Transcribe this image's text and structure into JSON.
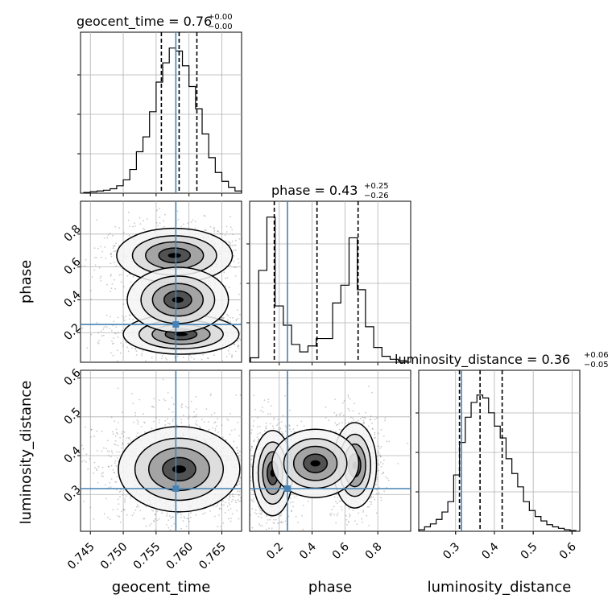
{
  "colors": {
    "truth": "#4682b4",
    "hist_line": "#000000",
    "grid": "#b0b0b0",
    "points": "#666666",
    "density_dark": "#000000"
  },
  "chart_data": {
    "type": "corner",
    "parameters": [
      "geocent_time",
      "phase",
      "luminosity_distance"
    ],
    "truths": {
      "geocent_time": 0.758,
      "phase": 0.25,
      "luminosity_distance": 0.315
    },
    "axis_ranges": {
      "geocent_time": [
        0.7435,
        0.768
      ],
      "phase": [
        0.02,
        1.0
      ],
      "luminosity_distance": [
        0.205,
        0.62
      ]
    },
    "ticks": {
      "geocent_time": [
        0.745,
        0.75,
        0.755,
        0.76,
        0.765
      ],
      "geocent_time_labels": [
        "0.745",
        "0.750",
        "0.755",
        "0.760",
        "0.765"
      ],
      "phase": [
        0.2,
        0.4,
        0.6,
        0.8
      ],
      "phase_labels": [
        "0.2",
        "0.4",
        "0.6",
        "0.8"
      ],
      "luminosity_distance": [
        0.3,
        0.4,
        0.5,
        0.6
      ],
      "luminosity_distance_labels": [
        "0.3",
        "0.4",
        "0.5",
        "0.6"
      ]
    },
    "grid": true,
    "titles": {
      "geocent_time": {
        "label": "geocent_time = 0.76",
        "sup": "+0.00",
        "sub": "−0.00"
      },
      "phase": {
        "label": "phase = 0.43",
        "sup": "+0.25",
        "sub": "−0.26"
      },
      "luminosity_distance": {
        "label": "luminosity_distance = 0.36",
        "sup": "+0.06",
        "sub": "−0.05"
      }
    },
    "axis_labels": {
      "geocent_time": "geocent_time",
      "phase": "phase",
      "luminosity_distance": "luminosity_distance"
    },
    "quantiles": {
      "geocent_time": [
        0.7558,
        0.7585,
        0.7612
      ],
      "phase": [
        0.17,
        0.43,
        0.68
      ],
      "luminosity_distance": [
        0.31,
        0.363,
        0.42
      ]
    },
    "histograms": {
      "geocent_time": {
        "x": [
          0.7445,
          0.7455,
          0.7465,
          0.7475,
          0.7485,
          0.7495,
          0.7505,
          0.7515,
          0.7525,
          0.7535,
          0.7545,
          0.7555,
          0.7565,
          0.7575,
          0.7585,
          0.7595,
          0.7605,
          0.7615,
          0.7625,
          0.7635,
          0.7645,
          0.7655,
          0.7665,
          0.7675
        ],
        "counts": [
          0.005,
          0.01,
          0.015,
          0.02,
          0.03,
          0.05,
          0.09,
          0.16,
          0.28,
          0.38,
          0.55,
          0.75,
          0.88,
          0.98,
          0.96,
          0.86,
          0.72,
          0.57,
          0.4,
          0.24,
          0.14,
          0.08,
          0.04,
          0.015
        ]
      },
      "phase": {
        "x": [
          0.05,
          0.1,
          0.15,
          0.2,
          0.25,
          0.3,
          0.35,
          0.4,
          0.45,
          0.5,
          0.55,
          0.6,
          0.65,
          0.7,
          0.75,
          0.8,
          0.85,
          0.9,
          0.95
        ],
        "counts": [
          0.03,
          0.62,
          0.98,
          0.38,
          0.25,
          0.12,
          0.07,
          0.11,
          0.16,
          0.16,
          0.4,
          0.52,
          0.84,
          0.49,
          0.24,
          0.1,
          0.04,
          0.02,
          0.01
        ]
      },
      "luminosity_distance": {
        "x": [
          0.2125,
          0.2275,
          0.2425,
          0.2575,
          0.2725,
          0.2875,
          0.3025,
          0.3175,
          0.3325,
          0.3475,
          0.3625,
          0.3775,
          0.3925,
          0.4075,
          0.4225,
          0.4375,
          0.4525,
          0.4675,
          0.4825,
          0.4975,
          0.5125,
          0.5275,
          0.5425,
          0.5575,
          0.5725,
          0.5875,
          0.6025
        ],
        "counts": [
          0.01,
          0.03,
          0.05,
          0.08,
          0.13,
          0.2,
          0.38,
          0.6,
          0.77,
          0.87,
          0.92,
          0.9,
          0.8,
          0.71,
          0.63,
          0.49,
          0.39,
          0.3,
          0.2,
          0.14,
          0.1,
          0.07,
          0.045,
          0.03,
          0.02,
          0.01,
          0.005
        ]
      }
    },
    "scatter_components": {
      "geocent_time_vs_phase": [
        {
          "mx": 0.7578,
          "my": 0.67,
          "sx": 0.004,
          "sy": 0.075,
          "w": 0.5
        },
        {
          "mx": 0.7588,
          "my": 0.19,
          "sx": 0.004,
          "sy": 0.055,
          "w": 0.42
        },
        {
          "mx": 0.7583,
          "my": 0.4,
          "sx": 0.0035,
          "sy": 0.09,
          "w": 0.08
        }
      ],
      "geocent_time_vs_luminosity_distance": [
        {
          "mx": 0.7585,
          "my": 0.365,
          "sx": 0.0042,
          "sy": 0.05,
          "w": 1.0
        }
      ],
      "phase_vs_luminosity_distance": [
        {
          "mx": 0.16,
          "my": 0.355,
          "sx": 0.055,
          "sy": 0.05,
          "w": 0.5
        },
        {
          "mx": 0.66,
          "my": 0.375,
          "sx": 0.06,
          "sy": 0.05,
          "w": 0.42
        },
        {
          "mx": 0.42,
          "my": 0.38,
          "sx": 0.12,
          "sy": 0.04,
          "w": 0.08
        }
      ]
    }
  }
}
